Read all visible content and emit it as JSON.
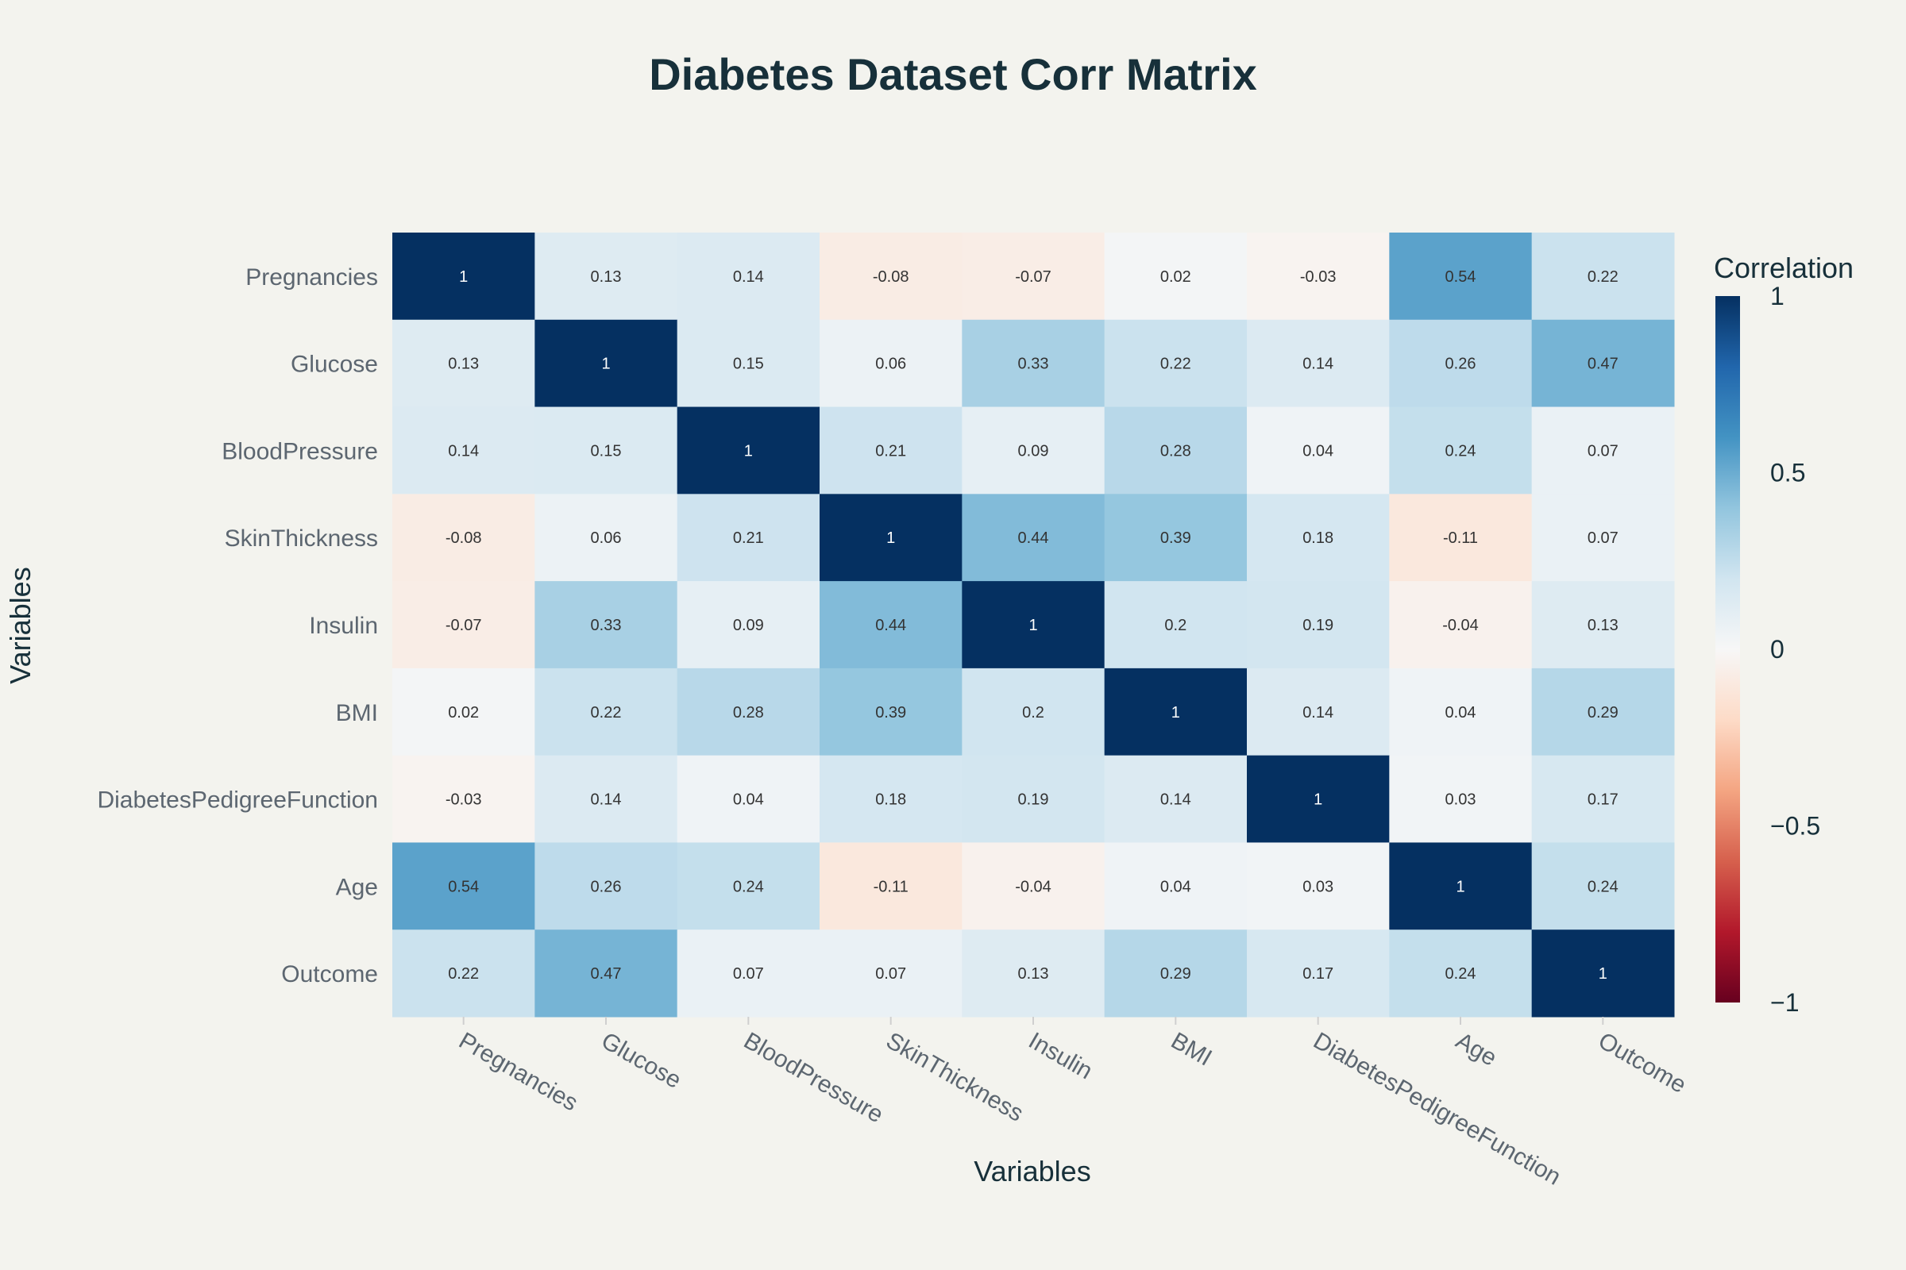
{
  "chart_data": {
    "type": "heatmap",
    "title": "Diabetes Dataset Corr Matrix",
    "xlabel": "Variables",
    "ylabel": "Variables",
    "x_categories": [
      "Pregnancies",
      "Glucose",
      "BloodPressure",
      "SkinThickness",
      "Insulin",
      "BMI",
      "DiabetesPedigreeFunction",
      "Age",
      "Outcome"
    ],
    "y_categories": [
      "Pregnancies",
      "Glucose",
      "BloodPressure",
      "SkinThickness",
      "Insulin",
      "BMI",
      "DiabetesPedigreeFunction",
      "Age",
      "Outcome"
    ],
    "values": [
      [
        1,
        0.13,
        0.14,
        -0.08,
        -0.07,
        0.02,
        -0.03,
        0.54,
        0.22
      ],
      [
        0.13,
        1,
        0.15,
        0.06,
        0.33,
        0.22,
        0.14,
        0.26,
        0.47
      ],
      [
        0.14,
        0.15,
        1,
        0.21,
        0.09,
        0.28,
        0.04,
        0.24,
        0.07
      ],
      [
        -0.08,
        0.06,
        0.21,
        1,
        0.44,
        0.39,
        0.18,
        -0.11,
        0.07
      ],
      [
        -0.07,
        0.33,
        0.09,
        0.44,
        1,
        0.2,
        0.19,
        -0.04,
        0.13
      ],
      [
        0.02,
        0.22,
        0.28,
        0.39,
        0.2,
        1,
        0.14,
        0.04,
        0.29
      ],
      [
        -0.03,
        0.14,
        0.04,
        0.18,
        0.19,
        0.14,
        1,
        0.03,
        0.17
      ],
      [
        0.54,
        0.26,
        0.24,
        -0.11,
        -0.04,
        0.04,
        0.03,
        1,
        0.24
      ],
      [
        0.22,
        0.47,
        0.07,
        0.07,
        0.13,
        0.29,
        0.17,
        0.24,
        1
      ]
    ],
    "colorscale": "RdBu",
    "zlim": [
      -1,
      1
    ],
    "colorbar": {
      "title": "Correlation",
      "ticks": [
        1,
        0.5,
        0,
        -0.5,
        -1
      ],
      "tick_labels": [
        "1",
        "0.5",
        "0",
        "−0.5",
        "−1"
      ]
    },
    "grid": false,
    "legend": "colorbar-right"
  },
  "colors": {
    "background": "#f3f3ee",
    "title": "#17303a",
    "axis_title": "#17303a",
    "tick_label": "#5c6670",
    "cell_text": "#333333"
  }
}
